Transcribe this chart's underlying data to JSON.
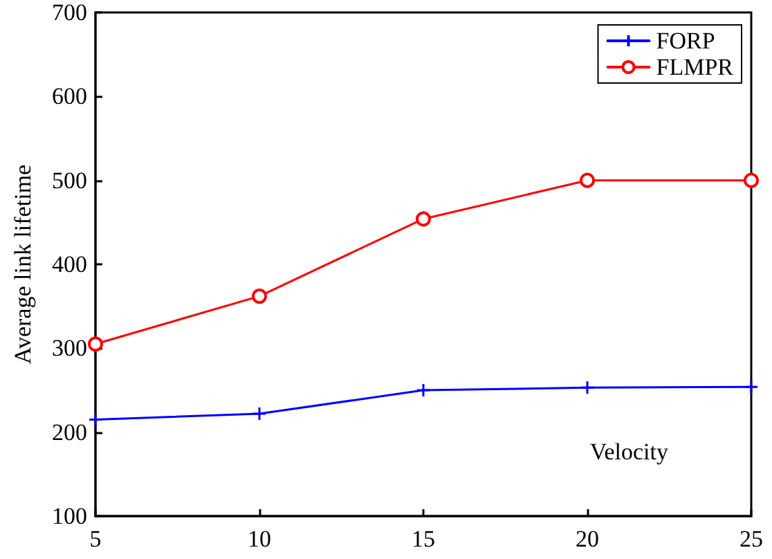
{
  "chart_data": {
    "type": "line",
    "ylabel": "Average link lifetime",
    "xlabel": "Velocity",
    "x": [
      5,
      10,
      15,
      20,
      25
    ],
    "xlim": [
      5,
      25
    ],
    "xticks": [
      5,
      10,
      15,
      20,
      25
    ],
    "ylim": [
      100,
      700
    ],
    "yticks": [
      100,
      200,
      300,
      400,
      500,
      600,
      700
    ],
    "grid": false,
    "legend": "top right",
    "line_style": "solid",
    "series": [
      {
        "name": "FORP",
        "color": "#0000ff",
        "marker": "cross",
        "values": [
          215,
          222,
          250,
          253,
          254
        ]
      },
      {
        "name": "FLMPR",
        "color": "#ff0000",
        "marker": "circle",
        "values": [
          305,
          362,
          454,
          500,
          500
        ]
      }
    ]
  }
}
